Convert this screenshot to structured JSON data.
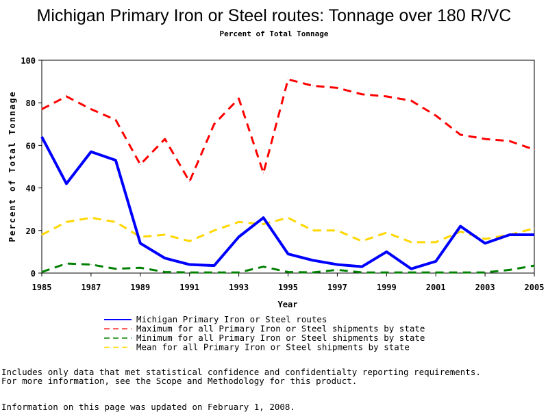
{
  "chart_data": {
    "type": "line",
    "title": "Michigan Primary Iron or Steel routes: Tonnage over 180 R/VC",
    "subtitle": "Percent of Total Tonnage",
    "xlabel": "Year",
    "ylabel": "Percent of Total Tonnage",
    "xlim": [
      1985,
      2005
    ],
    "ylim": [
      0,
      100
    ],
    "x_ticks": [
      1985,
      1987,
      1989,
      1991,
      1993,
      1995,
      1997,
      1999,
      2001,
      2003,
      2005
    ],
    "y_ticks": [
      0,
      20,
      40,
      60,
      80,
      100
    ],
    "x": [
      1985,
      1986,
      1987,
      1988,
      1989,
      1990,
      1991,
      1992,
      1993,
      1994,
      1995,
      1996,
      1997,
      1998,
      1999,
      2000,
      2001,
      2002,
      2003,
      2004,
      2005
    ],
    "legend_position": "bottom",
    "series": [
      {
        "name": "Michigan Primary Iron or Steel routes",
        "color": "#0000ff",
        "style": "solid",
        "values": [
          64,
          42,
          57,
          53,
          14,
          7,
          4,
          3.5,
          17,
          26,
          9,
          6,
          4,
          3,
          10,
          2,
          5.5,
          22,
          14,
          18,
          18
        ]
      },
      {
        "name": "Maximum for all Primary Iron or Steel shipments by state",
        "color": "#ff0000",
        "style": "dashed",
        "values": [
          77,
          83,
          77,
          72,
          51,
          63,
          43,
          70,
          82,
          47,
          91,
          88,
          87,
          84,
          83,
          81,
          74,
          65,
          63,
          62,
          58
        ]
      },
      {
        "name": "Minimum for all Primary Iron or Steel shipments by state",
        "color": "#008000",
        "style": "dashed",
        "values": [
          0.5,
          4.5,
          4,
          2,
          2.5,
          0.5,
          0.3,
          0.3,
          0.3,
          3,
          0.5,
          0.3,
          1.5,
          0.3,
          0.3,
          0.3,
          0.3,
          0.3,
          0.3,
          1.5,
          3.5
        ]
      },
      {
        "name": "Mean for all Primary Iron or Steel shipments by state",
        "color": "#ffd700",
        "style": "dashed",
        "values": [
          18,
          24,
          26,
          24,
          17,
          18,
          15,
          20,
          24,
          23,
          26,
          20,
          20,
          15,
          19,
          14.5,
          14.5,
          19.5,
          16,
          18,
          21
        ]
      }
    ]
  },
  "notes": {
    "line1": "Includes only data that met statistical confidence and confidentialty reporting requirements.",
    "line2": "For more information, see the Scope and Methodology for this product.",
    "updated": "Information on this page was updated on February 1, 2008."
  }
}
